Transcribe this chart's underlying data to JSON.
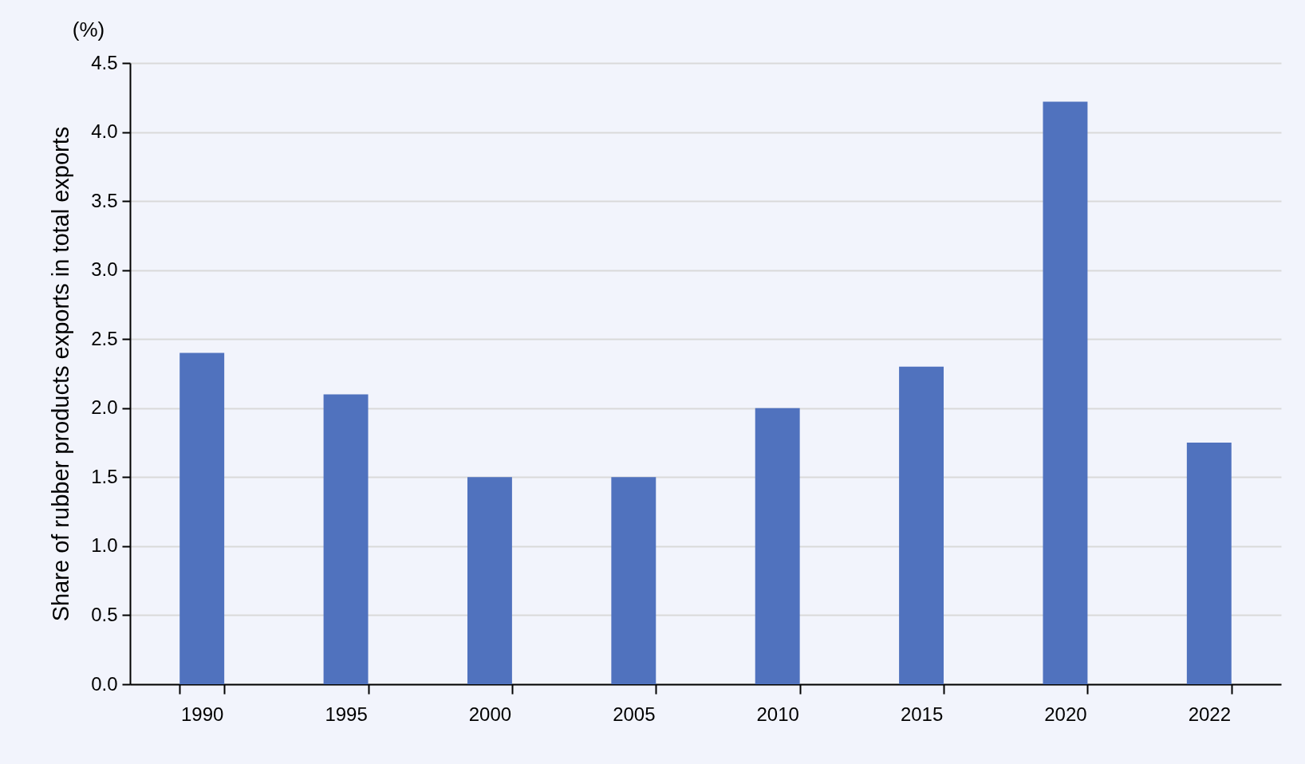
{
  "chart_data": {
    "type": "bar",
    "ylabel": "Share of rubber products exports in total exports",
    "annotations": [
      "(%)"
    ],
    "categories": [
      "1990",
      "1995",
      "2000",
      "2005",
      "2010",
      "2015",
      "2020",
      "2022"
    ],
    "values": [
      2.4,
      2.1,
      1.5,
      1.5,
      2.0,
      2.3,
      4.22,
      1.75
    ],
    "color": "#5072be",
    "ylim": [
      0,
      4.5
    ],
    "yticks": [
      {
        "value": 0,
        "label": "0.0"
      },
      0.5,
      {
        "value": 1,
        "label": "1.0"
      },
      1.5,
      {
        "value": 2,
        "label": "2.0"
      },
      2.5,
      {
        "value": 3,
        "label": "3.0"
      },
      3.5,
      {
        "value": 4,
        "label": "4.0"
      },
      4.5
    ],
    "grid": "y"
  }
}
